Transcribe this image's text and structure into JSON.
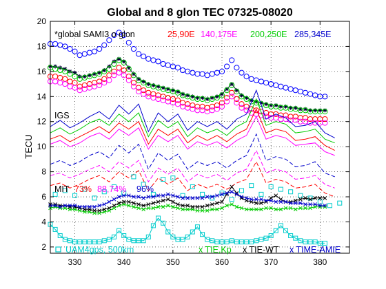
{
  "chart_data": {
    "type": "line",
    "title": "Global and 8 glon TEC 07325-08020",
    "ylabel": "TECU",
    "xlabel": "",
    "xlim": [
      325,
      386
    ],
    "ylim": [
      1.5,
      20
    ],
    "xticks": [
      330,
      340,
      350,
      360,
      370,
      380
    ],
    "yticks": [
      2,
      4,
      6,
      8,
      10,
      12,
      14,
      16,
      18,
      20
    ],
    "grid": true,
    "annotations": {
      "sami3": {
        "text": "*global SAMI3 o glon",
        "color": "#000000"
      },
      "lon1": {
        "text": "25,90E",
        "color": "#ff0000"
      },
      "lon2": {
        "text": "140,175E",
        "color": "#ff00ff"
      },
      "lon3": {
        "text": "200,250E",
        "color": "#00cc00"
      },
      "lon4": {
        "text": "285,345E",
        "color": "#0000cc"
      },
      "igs": {
        "text": "IGS",
        "color": "#000000"
      },
      "mit": {
        "text": "MIT",
        "color": "#000000"
      },
      "mit1": {
        "text": "73%",
        "color": "#ff0000"
      },
      "mit2": {
        "text": "88,74%",
        "color": "#ff00ff"
      },
      "mit3": {
        "text": "96%",
        "color": "#0000cc"
      },
      "uam": {
        "text": "UAM4gps,  500km",
        "color": "#00cccc"
      },
      "tiekp": {
        "text": "x TIE,Kp",
        "color": "#00cc00"
      },
      "tiewt": {
        "text": "x TIE-WT",
        "color": "#000000"
      },
      "timeamie": {
        "text": "x TIME-AMIE",
        "color": "#0000cc"
      }
    },
    "series": [
      {
        "group": "sami3",
        "color": "#0000ff",
        "marker": "circle",
        "x_start": 325,
        "x_step": 1,
        "values": [
          18.2,
          18.2,
          18.1,
          18.0,
          17.8,
          17.6,
          17.3,
          17.4,
          17.5,
          17.6,
          17.8,
          18.1,
          18.5,
          18.9,
          19.1,
          18.9,
          18.3,
          17.8,
          17.4,
          17.2,
          17.0,
          16.9,
          16.8,
          16.6,
          16.5,
          16.4,
          16.3,
          16.1,
          16.0,
          15.9,
          15.8,
          15.8,
          15.7,
          15.8,
          15.9,
          16.0,
          16.4,
          16.9,
          16.3,
          15.9,
          15.6,
          15.4,
          15.3,
          15.2,
          15.1,
          15.0,
          14.9,
          14.8,
          14.7,
          14.6,
          14.5,
          14.4,
          14.3,
          14.2,
          14.1,
          14.0,
          14.0
        ]
      },
      {
        "group": "sami3",
        "color": "#000033",
        "marker": "star",
        "x_start": 325,
        "x_step": 1,
        "values": [
          16.4,
          16.4,
          16.3,
          16.2,
          16.0,
          15.9,
          15.6,
          15.6,
          15.7,
          15.8,
          15.9,
          16.1,
          16.4,
          16.8,
          17.0,
          16.8,
          16.3,
          15.8,
          15.4,
          15.2,
          15.0,
          14.9,
          14.8,
          14.7,
          14.6,
          14.5,
          14.4,
          14.2,
          14.1,
          14.0,
          13.9,
          13.9,
          13.8,
          13.9,
          14.0,
          14.2,
          14.6,
          15.0,
          14.5,
          14.1,
          13.9,
          13.7,
          13.6,
          13.5,
          13.4,
          13.3,
          13.3,
          13.2,
          13.2,
          13.1,
          13.1,
          13.0,
          13.0,
          12.9,
          12.9,
          12.9,
          12.9
        ]
      },
      {
        "group": "sami3",
        "color": "#00cc00",
        "marker": "circle",
        "x_start": 325,
        "x_step": 1,
        "values": [
          16.3,
          16.2,
          16.1,
          16.0,
          15.8,
          15.6,
          15.4,
          15.5,
          15.6,
          15.7,
          15.8,
          16.0,
          16.2,
          16.6,
          16.9,
          16.7,
          16.2,
          15.7,
          15.3,
          15.1,
          14.9,
          14.8,
          14.7,
          14.6,
          14.5,
          14.4,
          14.3,
          14.1,
          14.0,
          13.9,
          13.8,
          13.8,
          13.7,
          13.8,
          13.9,
          14.1,
          14.5,
          14.9,
          14.4,
          14.0,
          13.8,
          13.6,
          13.5,
          13.4,
          13.3,
          13.2,
          13.2,
          13.1,
          13.1,
          13.0,
          13.0,
          12.9,
          12.9,
          12.8,
          12.8,
          12.8,
          12.8
        ]
      },
      {
        "group": "sami3",
        "color": "#ff0000",
        "marker": "circle",
        "x_start": 325,
        "x_step": 1,
        "values": [
          15.6,
          15.6,
          15.5,
          15.4,
          15.2,
          15.1,
          14.8,
          14.9,
          15.0,
          15.1,
          15.2,
          15.4,
          15.7,
          16.0,
          16.3,
          16.1,
          15.6,
          15.1,
          14.7,
          14.5,
          14.3,
          14.2,
          14.1,
          14.0,
          13.9,
          13.8,
          13.7,
          13.5,
          13.4,
          13.3,
          13.2,
          13.2,
          13.1,
          13.2,
          13.3,
          13.5,
          13.9,
          14.3,
          13.8,
          13.4,
          13.2,
          13.0,
          12.9,
          12.8,
          12.7,
          12.6,
          12.6,
          12.5,
          12.5,
          12.4,
          12.4,
          12.3,
          12.3,
          12.2,
          12.2,
          12.2,
          12.2
        ]
      },
      {
        "group": "sami3",
        "color": "#ff00ff",
        "marker": "circle",
        "x_start": 325,
        "x_step": 1,
        "values": [
          15.2,
          15.2,
          15.1,
          15.0,
          14.8,
          14.7,
          14.5,
          14.6,
          14.7,
          14.8,
          14.9,
          15.1,
          15.3,
          15.7,
          15.9,
          15.7,
          15.3,
          14.8,
          14.4,
          14.2,
          14.0,
          13.9,
          13.8,
          13.7,
          13.6,
          13.5,
          13.4,
          13.2,
          13.1,
          13.0,
          12.9,
          12.9,
          12.8,
          12.9,
          13.0,
          13.2,
          13.6,
          14.0,
          13.5,
          13.1,
          12.9,
          12.7,
          12.6,
          12.5,
          12.4,
          12.3,
          12.3,
          12.2,
          12.2,
          12.1,
          12.1,
          12.0,
          12.0,
          11.9,
          11.9,
          11.9,
          11.9
        ]
      },
      {
        "group": "igs",
        "color": "#0000cc",
        "marker": "line",
        "x_start": 325,
        "x_step": 2,
        "values": [
          11.6,
          12.1,
          11.5,
          11.9,
          12.4,
          12.8,
          12.2,
          13.3,
          12.6,
          13.4,
          11.2,
          12.7,
          12.0,
          12.6,
          11.3,
          12.0,
          11.6,
          12.0,
          11.4,
          12.2,
          12.6,
          14.5,
          12.2,
          12.6,
          12.3,
          11.6,
          11.7,
          12.0,
          11.1,
          10.7
        ]
      },
      {
        "group": "igs",
        "color": "#00cc00",
        "marker": "line",
        "x_start": 325,
        "x_step": 2,
        "values": [
          11.1,
          11.5,
          11.0,
          11.4,
          11.9,
          12.2,
          11.7,
          12.6,
          12.0,
          12.7,
          10.8,
          12.1,
          11.5,
          12.0,
          10.8,
          11.5,
          11.1,
          11.4,
          10.9,
          11.6,
          12.0,
          13.8,
          11.7,
          12.0,
          11.8,
          11.1,
          11.2,
          11.4,
          10.6,
          10.3
        ]
      },
      {
        "group": "igs",
        "color": "#ff0000",
        "marker": "line",
        "x_start": 325,
        "x_step": 2,
        "values": [
          10.6,
          10.9,
          10.4,
          10.8,
          11.2,
          11.6,
          11.1,
          11.9,
          11.4,
          12.0,
          10.2,
          11.4,
          10.9,
          11.4,
          10.3,
          10.9,
          10.5,
          10.9,
          10.4,
          11.0,
          11.4,
          13.0,
          11.1,
          11.4,
          11.2,
          10.5,
          10.6,
          10.8,
          10.1,
          9.7
        ]
      },
      {
        "group": "igs",
        "color": "#ff00ff",
        "marker": "line",
        "x_start": 325,
        "x_step": 2,
        "values": [
          10.2,
          10.5,
          10.0,
          10.3,
          10.8,
          11.1,
          10.6,
          11.4,
          10.9,
          11.5,
          9.8,
          10.9,
          10.4,
          10.9,
          9.8,
          10.4,
          10.1,
          10.4,
          9.9,
          10.5,
          10.9,
          12.4,
          10.6,
          10.9,
          10.7,
          10.1,
          10.2,
          10.3,
          9.6,
          9.3
        ]
      },
      {
        "group": "mit",
        "color": "#0000cc",
        "marker": "dash",
        "x_start": 325,
        "x_step": 2,
        "values": [
          8.6,
          8.9,
          8.5,
          8.8,
          9.3,
          9.6,
          9.1,
          10.1,
          9.5,
          10.2,
          8.2,
          9.5,
          8.9,
          9.4,
          8.2,
          8.8,
          8.5,
          8.8,
          8.3,
          8.9,
          9.3,
          11.0,
          8.9,
          9.2,
          9.0,
          8.4,
          8.5,
          8.8,
          7.9,
          7.6
        ]
      },
      {
        "group": "mit",
        "color": "#ff00ff",
        "marker": "dash",
        "x_start": 325,
        "x_step": 2,
        "values": [
          7.7,
          7.9,
          7.5,
          7.8,
          8.2,
          8.5,
          8.0,
          8.8,
          8.3,
          8.9,
          7.2,
          8.3,
          7.8,
          8.3,
          7.2,
          7.8,
          7.5,
          7.8,
          7.3,
          7.9,
          8.2,
          9.7,
          7.9,
          8.2,
          8.0,
          7.4,
          7.5,
          7.7,
          7.0,
          6.7
        ]
      },
      {
        "group": "mit",
        "color": "#ff0000",
        "marker": "dash",
        "x_start": 325,
        "x_step": 2,
        "values": [
          6.9,
          7.1,
          6.7,
          7.0,
          7.4,
          7.7,
          7.2,
          8.0,
          7.5,
          8.1,
          6.5,
          7.5,
          7.0,
          7.5,
          6.5,
          7.0,
          6.7,
          7.0,
          6.6,
          7.1,
          7.4,
          8.8,
          7.1,
          7.4,
          7.2,
          6.7,
          6.8,
          7.0,
          6.3,
          6.0
        ]
      },
      {
        "group": "uam",
        "color": "#00cccc",
        "marker": "square",
        "x_start": 326,
        "x_step": 2,
        "values": [
          6.2,
          6.5,
          6.1,
          6.6,
          5.9,
          6.4,
          6.8,
          6.3,
          7.6,
          7.0,
          6.2,
          7.4,
          7.5,
          6.1,
          6.8,
          6.2,
          5.9,
          6.3,
          5.8,
          6.5,
          6.9,
          6.2,
          6.8,
          6.6,
          6.4,
          6.1,
          5.9,
          5.6,
          5.3,
          5.5
        ]
      },
      {
        "group": "uam",
        "color": "#00cccc",
        "marker": "square-line",
        "x_start": 325,
        "x_step": 1,
        "values": [
          3.8,
          3.4,
          2.9,
          2.6,
          2.5,
          2.4,
          2.4,
          2.4,
          2.4,
          2.4,
          2.4,
          2.5,
          2.6,
          2.8,
          3.3,
          2.9,
          2.6,
          2.5,
          2.5,
          2.5,
          2.8,
          3.7,
          4.3,
          3.9,
          3.2,
          2.8,
          2.6,
          2.6,
          2.8,
          3.2,
          3.6,
          3.0,
          2.6,
          2.5,
          2.4,
          2.4,
          2.4,
          2.5,
          2.4,
          2.4,
          2.4,
          2.4,
          2.5,
          2.6,
          2.7,
          2.9,
          3.3,
          3.7,
          3.3,
          2.9,
          2.7,
          2.5,
          2.4,
          2.4,
          2.4,
          2.3,
          2.3
        ]
      },
      {
        "group": "tie",
        "color": "#00cc00",
        "marker": "x",
        "x_start": 325,
        "x_step": 1,
        "values": [
          5.1,
          5.2,
          5.1,
          5.1,
          5.0,
          5.0,
          4.9,
          4.8,
          4.8,
          4.7,
          4.7,
          4.8,
          4.9,
          5.1,
          5.3,
          5.4,
          5.3,
          5.2,
          5.1,
          5.0,
          5.1,
          5.1,
          5.2,
          5.2,
          5.3,
          5.2,
          5.1,
          5.0,
          5.0,
          5.0,
          4.9,
          4.9,
          4.9,
          5.0,
          5.0,
          5.1,
          5.3,
          5.4,
          5.2,
          5.1,
          5.0,
          5.0,
          5.0,
          5.0,
          5.1,
          5.1,
          5.0,
          5.0,
          5.1,
          5.1,
          5.0,
          5.1,
          5.1,
          5.1,
          5.2,
          5.2,
          5.2
        ]
      },
      {
        "group": "tie",
        "color": "#000000",
        "marker": "x",
        "x_start": 325,
        "x_step": 1,
        "values": [
          5.4,
          5.4,
          5.3,
          5.3,
          5.2,
          5.2,
          5.1,
          5.0,
          5.0,
          4.9,
          4.9,
          5.0,
          5.1,
          5.3,
          5.5,
          5.6,
          5.6,
          5.5,
          5.4,
          5.3,
          5.4,
          5.5,
          5.6,
          5.7,
          5.8,
          5.6,
          5.4,
          5.3,
          5.3,
          5.2,
          5.2,
          5.2,
          5.3,
          5.4,
          5.5,
          5.6,
          6.2,
          6.8,
          6.3,
          5.9,
          5.7,
          5.6,
          5.5,
          5.5,
          5.6,
          5.9,
          6.1,
          5.8,
          5.6,
          5.6,
          5.7,
          5.8,
          5.9,
          5.8,
          5.9,
          5.9,
          5.9
        ]
      },
      {
        "group": "tie",
        "color": "#0000cc",
        "marker": "x",
        "x_start": 325,
        "x_step": 1,
        "values": [
          5.3,
          5.3,
          5.2,
          5.3,
          5.3,
          5.3,
          5.2,
          5.2,
          5.2,
          5.2,
          5.3,
          5.4,
          5.6,
          5.8,
          6.0,
          6.1,
          6.1,
          6.0,
          6.0,
          5.9,
          6.0,
          6.0,
          6.1,
          6.1,
          6.2,
          6.1,
          6.0,
          5.9,
          5.9,
          5.9,
          5.9,
          5.9,
          6.0,
          6.0,
          6.1,
          6.2,
          6.3,
          6.4,
          6.2,
          6.0,
          5.9,
          5.8,
          5.8,
          5.8,
          5.7,
          5.7,
          5.6,
          5.6,
          5.6,
          5.5,
          5.5,
          5.5,
          5.4,
          5.4,
          5.4,
          5.3,
          5.3
        ]
      }
    ]
  }
}
